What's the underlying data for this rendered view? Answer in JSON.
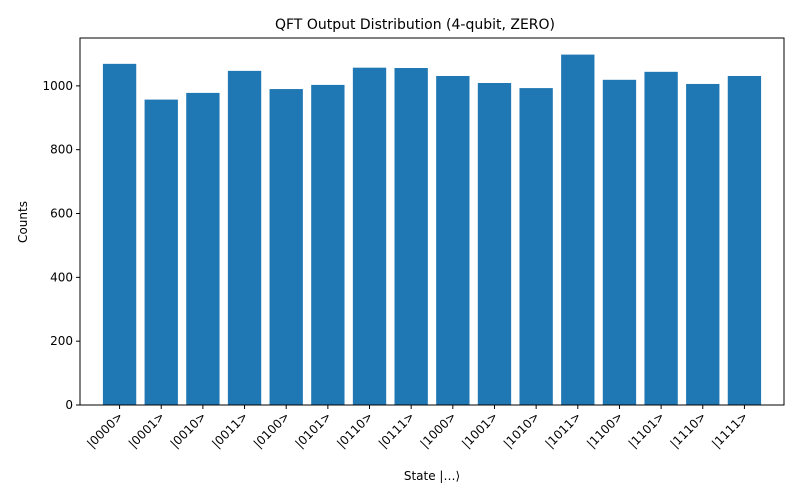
{
  "chart_data": {
    "type": "bar",
    "title": "QFT Output Distribution (4-qubit, ZERO)",
    "xlabel": "State |…⟩",
    "ylabel": "Counts",
    "categories": [
      "|0000>",
      "|0001>",
      "|0010>",
      "|0011>",
      "|0100>",
      "|0101>",
      "|0110>",
      "|0111>",
      "|1000>",
      "|1001>",
      "|1010>",
      "|1011>",
      "|1100>",
      "|1101>",
      "|1110>",
      "|1111>"
    ],
    "values": [
      1069,
      957,
      978,
      1047,
      990,
      1003,
      1057,
      1056,
      1031,
      1009,
      993,
      1098,
      1019,
      1044,
      1006,
      1031
    ],
    "ylim": [
      0,
      1150
    ],
    "yticks": [
      0,
      200,
      400,
      600,
      800,
      1000
    ],
    "bar_color": "#1f77b4",
    "grid": false
  }
}
